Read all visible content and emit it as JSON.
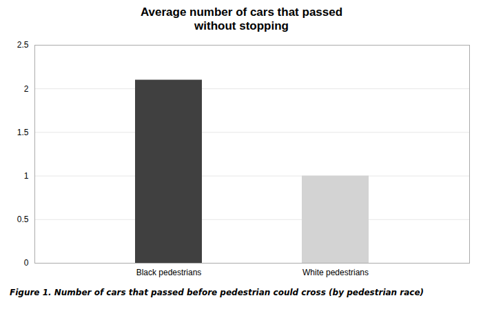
{
  "chart_data": {
    "type": "bar",
    "title": "Average number of cars that passed\nwithout stopping",
    "caption": "Figure 1. Number of cars that passed before pedestrian could cross (by pedestrian race)",
    "categories": [
      "Black pedestrians",
      "White pedestrians"
    ],
    "values": [
      2.1,
      1.0
    ],
    "colors": [
      "#404040",
      "#d3d3d3"
    ],
    "ylim": [
      0,
      2.5
    ],
    "yticks": [
      0,
      0.5,
      1.0,
      1.5,
      2.0,
      2.5
    ],
    "grid": true
  }
}
